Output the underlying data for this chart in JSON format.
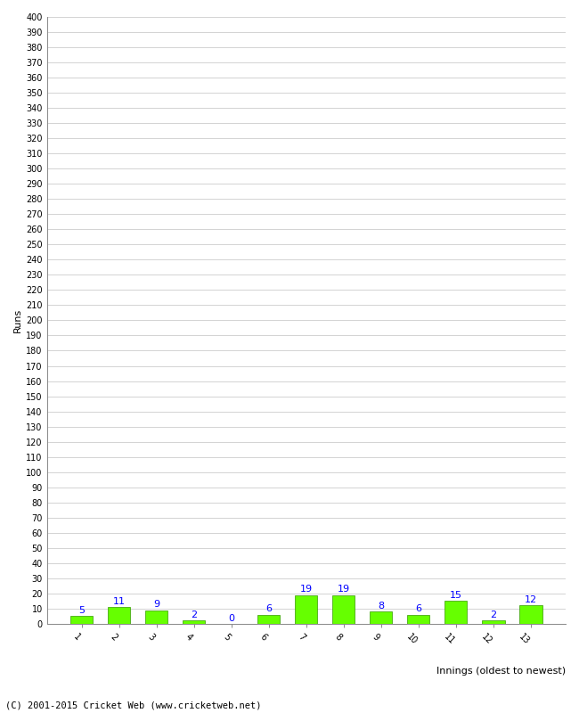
{
  "categories": [
    "1",
    "2",
    "3",
    "4",
    "5",
    "6",
    "7",
    "8",
    "9",
    "10",
    "11",
    "12",
    "13"
  ],
  "values": [
    5,
    11,
    9,
    2,
    0,
    6,
    19,
    19,
    8,
    6,
    15,
    2,
    12
  ],
  "bar_color": "#66ff00",
  "bar_edge_color": "#339900",
  "label_color": "blue",
  "ylabel": "Runs",
  "xlabel": "Innings (oldest to newest)",
  "ylim": [
    0,
    400
  ],
  "ytick_step": 10,
  "footer": "(C) 2001-2015 Cricket Web (www.cricketweb.net)",
  "background_color": "#ffffff",
  "grid_color": "#cccccc",
  "tick_label_fontsize": 7,
  "bar_label_fontsize": 8,
  "ylabel_fontsize": 8,
  "xlabel_fontsize": 8
}
